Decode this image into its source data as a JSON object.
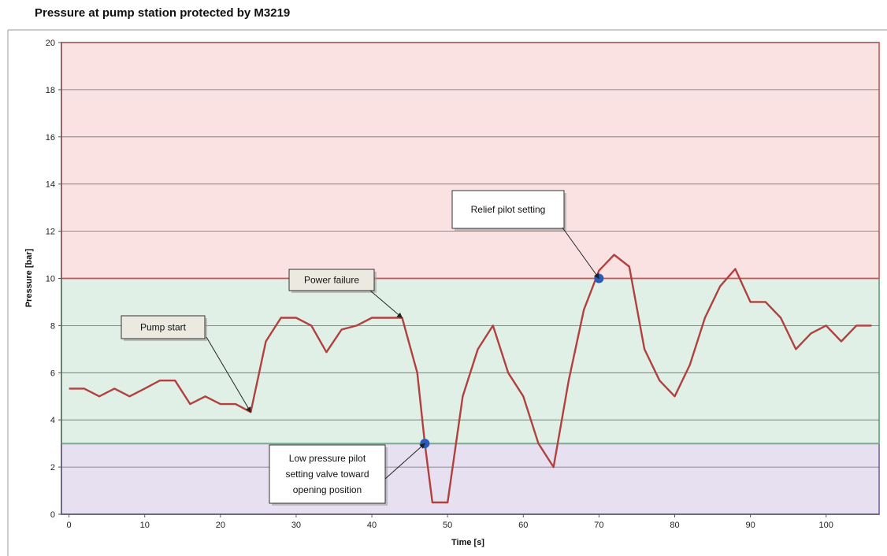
{
  "chart_data": {
    "type": "line",
    "title": "Pressure at pump station protected by M3219",
    "xlabel": "Time [s]",
    "ylabel": "Pressure [bar]",
    "xlim": [
      -1,
      107
    ],
    "ylim": [
      0,
      20
    ],
    "x_ticks": [
      0,
      10,
      20,
      30,
      40,
      50,
      60,
      70,
      80,
      90,
      100
    ],
    "y_ticks": [
      0,
      2,
      4,
      6,
      8,
      10,
      12,
      14,
      16,
      18,
      20
    ],
    "grid": true,
    "bands": [
      {
        "from": 0,
        "to": 3,
        "fill": "#e6e0f0",
        "stroke": "#8a7db8"
      },
      {
        "from": 3,
        "to": 10,
        "fill": "#e0f0e6",
        "stroke": "#7ab08e"
      },
      {
        "from": 10,
        "to": 20,
        "fill": "#fbe2e2",
        "stroke": "#d67474"
      }
    ],
    "series": [
      {
        "color": "#b0413e",
        "x": [
          0,
          2,
          4,
          6,
          8,
          10,
          12,
          14,
          16,
          18,
          20,
          22,
          24,
          26,
          28,
          30,
          32,
          34,
          36,
          38,
          40,
          42,
          44,
          46,
          47,
          48,
          50,
          52,
          54,
          56,
          58,
          60,
          62,
          64,
          66,
          68,
          70,
          72,
          74,
          76,
          78,
          80,
          82,
          84,
          86,
          88,
          90,
          92,
          94,
          96,
          98,
          100,
          102,
          104,
          106
        ],
        "y": [
          5.33,
          5.33,
          5.0,
          5.33,
          5.0,
          5.33,
          5.67,
          5.67,
          4.67,
          5.0,
          4.67,
          4.67,
          4.33,
          7.33,
          8.33,
          8.33,
          8.0,
          6.87,
          7.83,
          8.0,
          8.33,
          8.33,
          8.33,
          6.0,
          3.0,
          0.5,
          0.5,
          5.0,
          7.0,
          8.0,
          6.0,
          5.0,
          3.0,
          2.0,
          5.67,
          8.67,
          10.33,
          11.0,
          10.5,
          7.0,
          5.67,
          5.0,
          6.33,
          8.33,
          9.67,
          10.4,
          9.0,
          9.0,
          8.33,
          7.0,
          7.67,
          8.0,
          7.33,
          8.0,
          8.0
        ]
      }
    ],
    "markers": [
      {
        "x": 47,
        "y": 3,
        "color": "#2a5bb8"
      },
      {
        "x": 70,
        "y": 10,
        "color": "#2a5bb8"
      }
    ],
    "annotations": [
      {
        "lines": [
          "Pump start"
        ],
        "target_x": 24,
        "target_y": 4.33,
        "fill": "#ece9e0"
      },
      {
        "lines": [
          "Power failure"
        ],
        "target_x": 44,
        "target_y": 8.33,
        "fill": "#ece9e0"
      },
      {
        "lines": [
          "Relief pilot setting"
        ],
        "target_x": 70,
        "target_y": 10,
        "fill": "#ffffff"
      },
      {
        "lines": [
          "Low pressure pilot",
          "setting valve toward",
          "opening position"
        ],
        "target_x": 47,
        "target_y": 3,
        "fill": "#ffffff"
      }
    ]
  }
}
